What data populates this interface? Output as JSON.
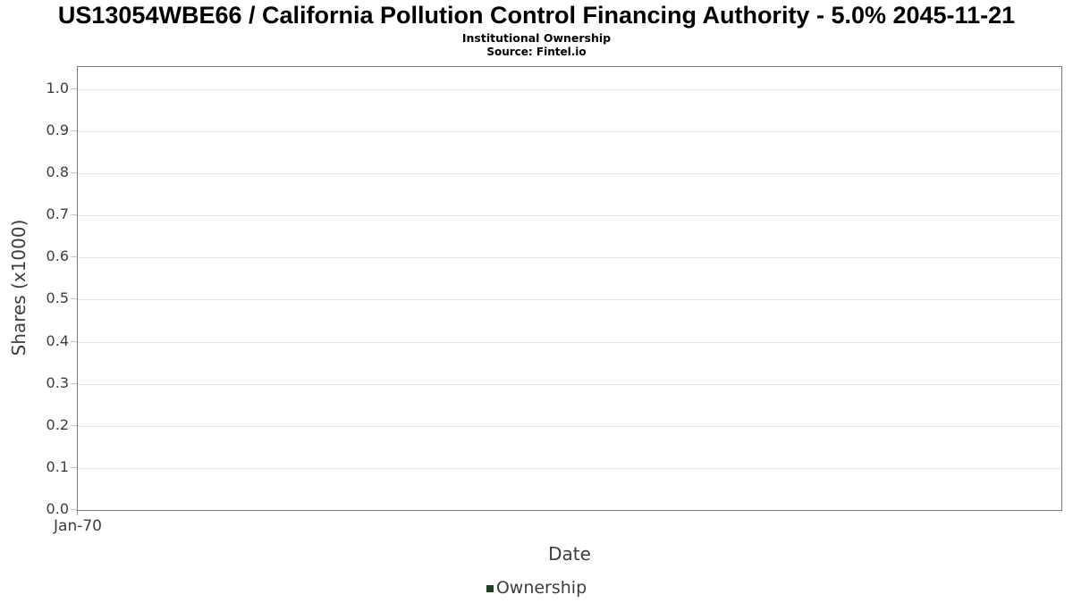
{
  "chart_data": {
    "type": "line",
    "title": "US13054WBE66 / California Pollution Control Financing Authority - 5.0% 2045-11-21",
    "subtitle": "Institutional Ownership",
    "source": "Source: Fintel.io",
    "xlabel": "Date",
    "ylabel": "Shares (x1000)",
    "ylim": [
      0.0,
      1.053
    ],
    "yticks": [
      {
        "value": 0.0,
        "label": "0.0"
      },
      {
        "value": 0.1,
        "label": "0.1"
      },
      {
        "value": 0.2,
        "label": "0.2"
      },
      {
        "value": 0.3,
        "label": "0.3"
      },
      {
        "value": 0.4,
        "label": "0.4"
      },
      {
        "value": 0.5,
        "label": "0.5"
      },
      {
        "value": 0.6,
        "label": "0.6"
      },
      {
        "value": 0.7,
        "label": "0.7"
      },
      {
        "value": 0.8,
        "label": "0.8"
      },
      {
        "value": 0.9,
        "label": "0.9"
      },
      {
        "value": 1.0,
        "label": "1.0"
      }
    ],
    "xticks": [
      {
        "position": 0.0,
        "label": "Jan-70"
      }
    ],
    "grid": "horizontal",
    "legend": {
      "position": "bottom-center",
      "entries": [
        {
          "label": "Ownership",
          "color": "#1b4022"
        }
      ]
    },
    "series": [
      {
        "name": "Ownership",
        "color": "#1b4022",
        "points": []
      }
    ]
  },
  "colors": {
    "plot_border": "#7a7a7a",
    "gridline": "#e4e4e4",
    "tick_mark": "#c6c6c6",
    "axis_text": "#3d3d3d",
    "title_text": "#000000",
    "background": "#ffffff"
  }
}
